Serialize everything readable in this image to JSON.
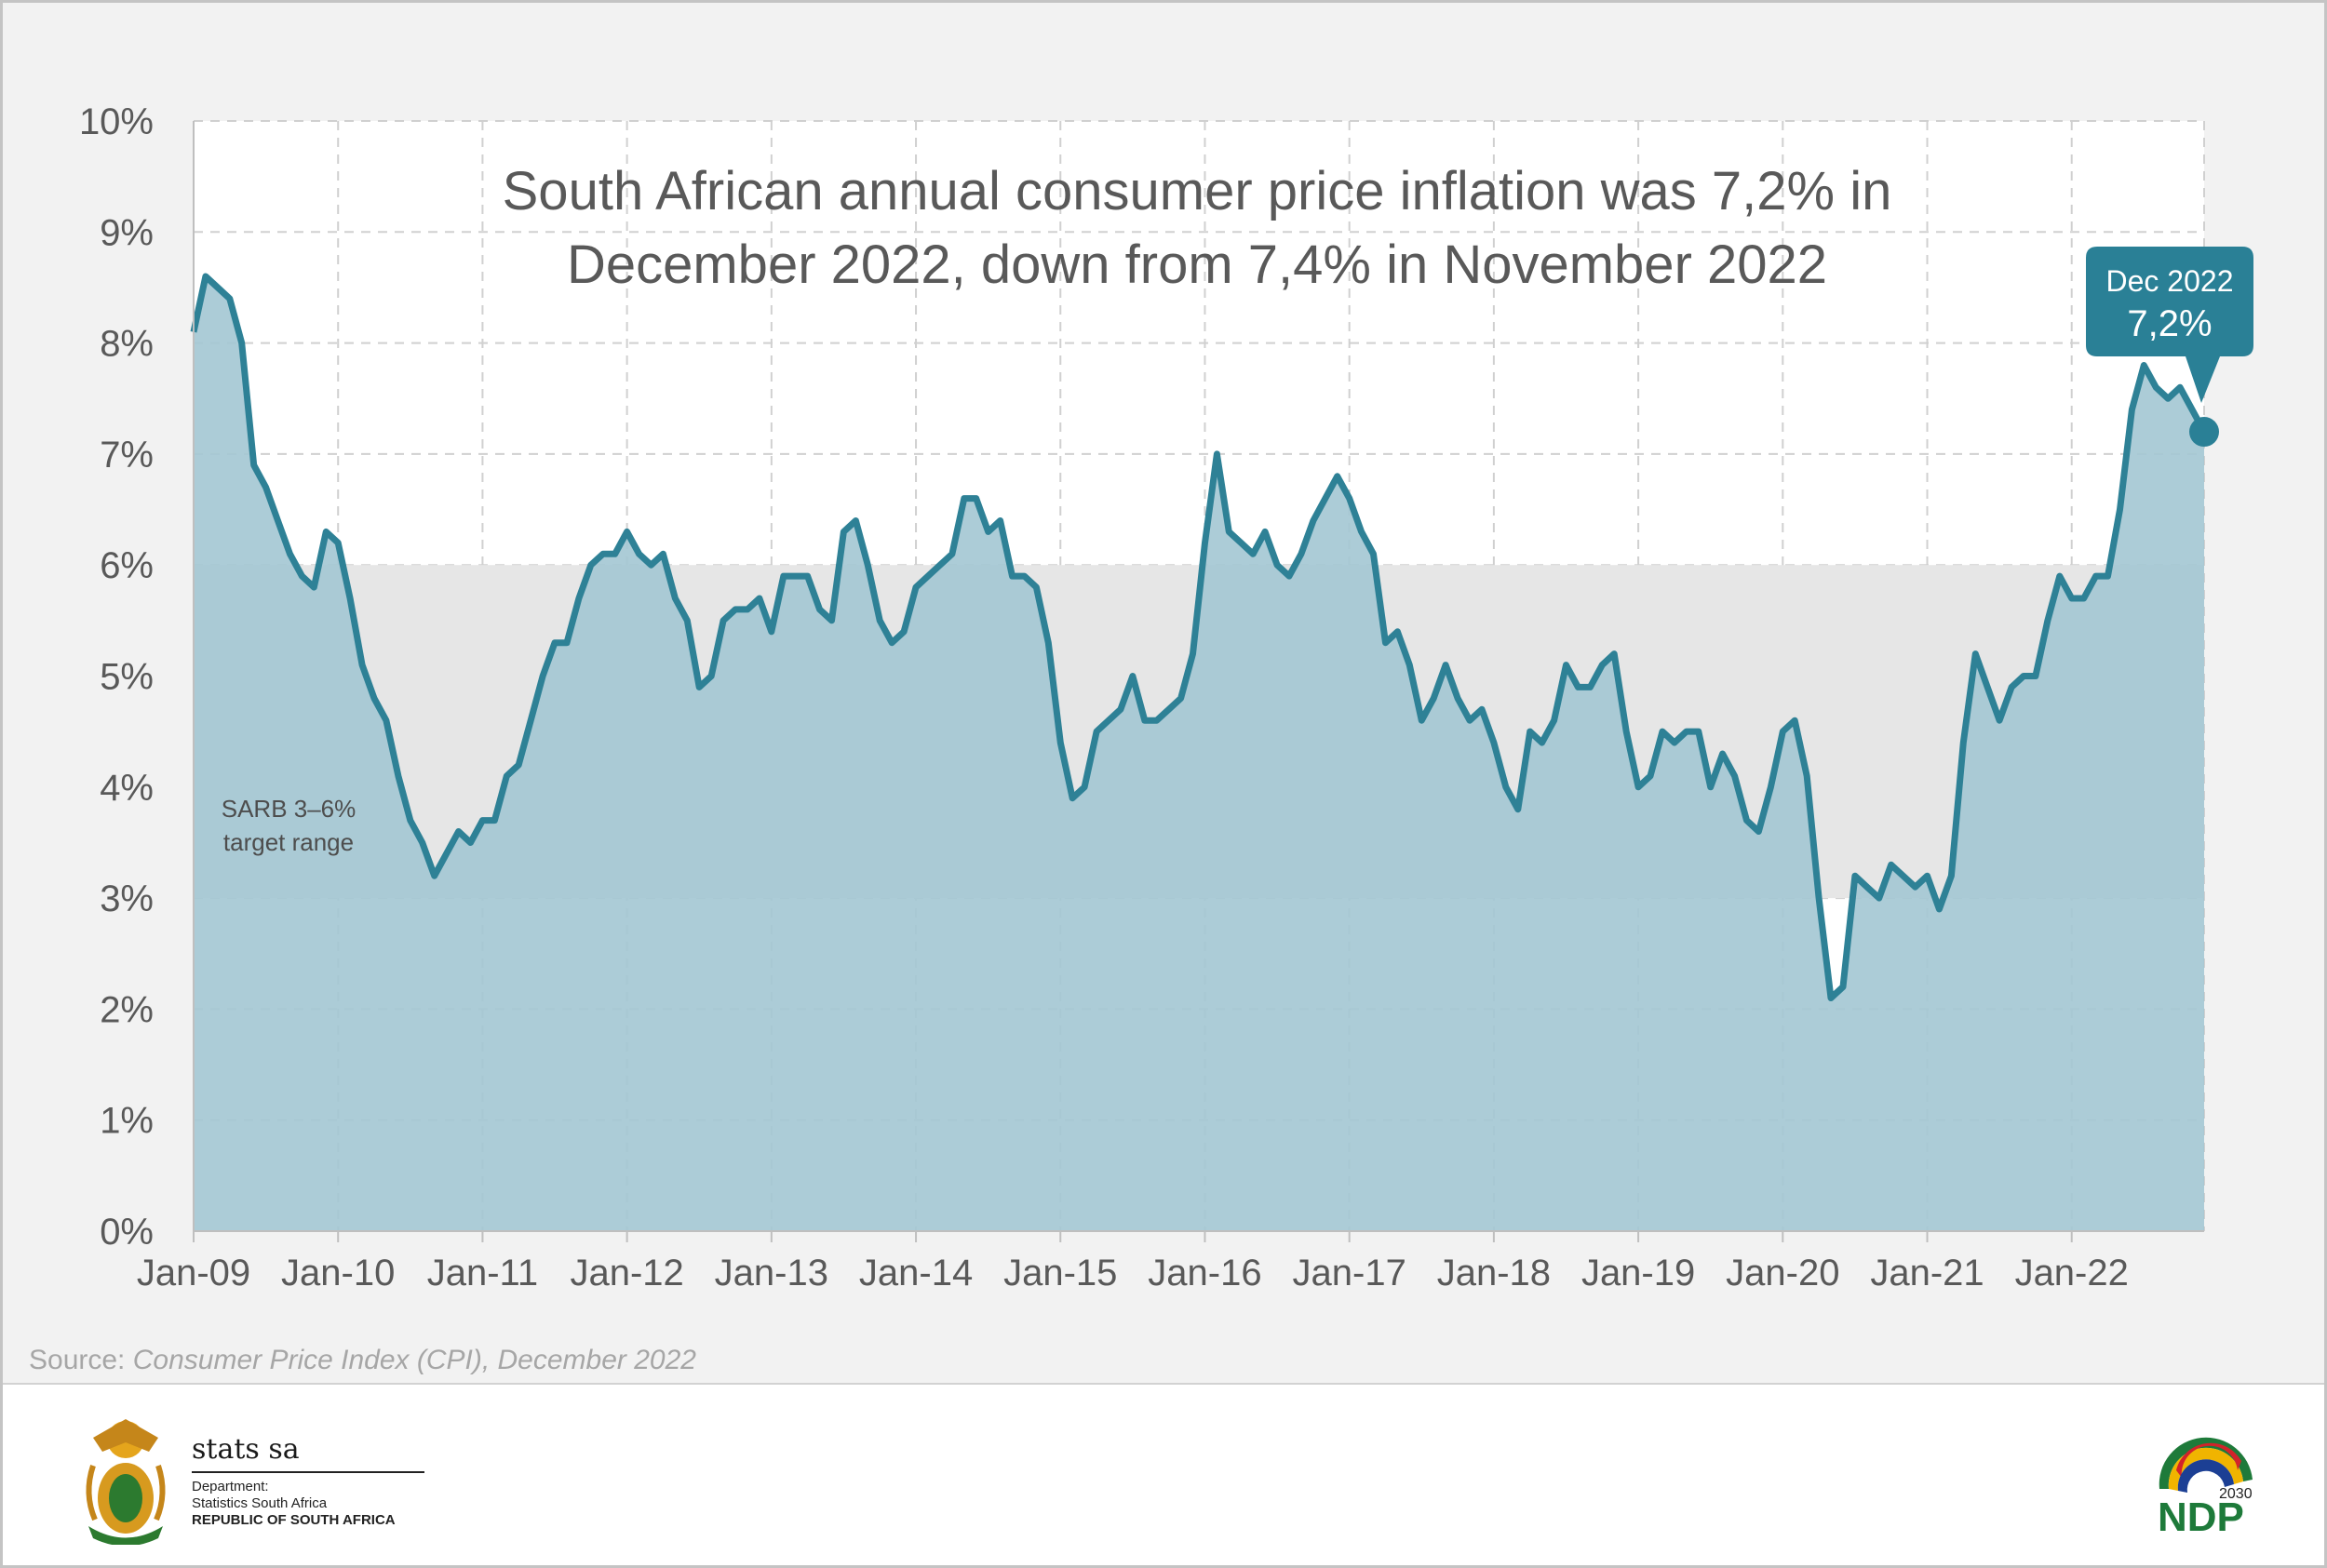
{
  "chart_data": {
    "type": "area",
    "title": "South African annual consumer price inflation was 7,2% in December 2022, down from 7,4% in November 2022",
    "title_lines": [
      "South African annual consumer price inflation was 7,2% in",
      "December 2022, down from 7,4% in November 2022"
    ],
    "xlabel": "",
    "ylabel": "",
    "ylim": [
      0,
      10
    ],
    "yticks": [
      "0%",
      "1%",
      "2%",
      "3%",
      "4%",
      "5%",
      "6%",
      "7%",
      "8%",
      "9%",
      "10%"
    ],
    "xticks": [
      "Jan-09",
      "Jan-10",
      "Jan-11",
      "Jan-12",
      "Jan-13",
      "Jan-14",
      "Jan-15",
      "Jan-16",
      "Jan-17",
      "Jan-18",
      "Jan-19",
      "Jan-20",
      "Jan-21",
      "Jan-22"
    ],
    "x_start": "Jan-09",
    "x_end": "Dec-22",
    "grid": true,
    "target_band": {
      "low": 3,
      "high": 6,
      "label_lines": [
        "SARB 3–6%",
        "target range"
      ]
    },
    "series": [
      {
        "name": "",
        "values": [
          8.1,
          8.6,
          8.5,
          8.4,
          8.0,
          6.9,
          6.7,
          6.4,
          6.1,
          5.9,
          5.8,
          6.3,
          6.2,
          5.7,
          5.1,
          4.8,
          4.6,
          4.1,
          3.7,
          3.5,
          3.2,
          3.4,
          3.6,
          3.5,
          3.7,
          3.7,
          4.1,
          4.2,
          4.6,
          5.0,
          5.3,
          5.3,
          5.7,
          6.0,
          6.1,
          6.1,
          6.3,
          6.1,
          6.0,
          6.1,
          5.7,
          5.5,
          4.9,
          5.0,
          5.5,
          5.6,
          5.6,
          5.7,
          5.4,
          5.9,
          5.9,
          5.9,
          5.6,
          5.5,
          6.3,
          6.4,
          6.0,
          5.5,
          5.3,
          5.4,
          5.8,
          5.9,
          6.0,
          6.1,
          6.6,
          6.6,
          6.3,
          6.4,
          5.9,
          5.9,
          5.8,
          5.3,
          4.4,
          3.9,
          4.0,
          4.5,
          4.6,
          4.7,
          5.0,
          4.6,
          4.6,
          4.7,
          4.8,
          5.2,
          6.2,
          7.0,
          6.3,
          6.2,
          6.1,
          6.3,
          6.0,
          5.9,
          6.1,
          6.4,
          6.6,
          6.8,
          6.6,
          6.3,
          6.1,
          5.3,
          5.4,
          5.1,
          4.6,
          4.8,
          5.1,
          4.8,
          4.6,
          4.7,
          4.4,
          4.0,
          3.8,
          4.5,
          4.4,
          4.6,
          5.1,
          4.9,
          4.9,
          5.1,
          5.2,
          4.5,
          4.0,
          4.1,
          4.5,
          4.4,
          4.5,
          4.5,
          4.0,
          4.3,
          4.1,
          3.7,
          3.6,
          4.0,
          4.5,
          4.6,
          4.1,
          3.0,
          2.1,
          2.2,
          3.2,
          3.1,
          3.0,
          3.3,
          3.2,
          3.1,
          3.2,
          2.9,
          3.2,
          4.4,
          5.2,
          4.9,
          4.6,
          4.9,
          5.0,
          5.0,
          5.5,
          5.9,
          5.7,
          5.7,
          5.9,
          5.9,
          6.5,
          7.4,
          7.8,
          7.6,
          7.5,
          7.6,
          7.4,
          7.2
        ]
      }
    ],
    "callout": {
      "label": "Dec 2022",
      "value": "7,2%"
    }
  },
  "source": {
    "prefix": "Source: ",
    "text": "Consumer Price Index (CPI), December 2022"
  },
  "footer": {
    "brand": "stats sa",
    "dept_line1": "Department:",
    "dept_line2": "Statistics South Africa",
    "dept_line3": "REPUBLIC OF SOUTH AFRICA",
    "ndp_text": "NDP",
    "ndp_year": "2030"
  },
  "colors": {
    "line": "#2e8196",
    "area": "#a3c7d3",
    "band": "#e6e6e6",
    "callout": "#2a8096",
    "axis_text": "#595959"
  }
}
